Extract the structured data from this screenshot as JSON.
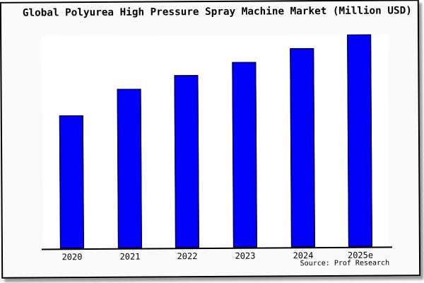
{
  "chart_data": {
    "type": "bar",
    "title": "Global Polyurea High Pressure Spray Machine Market (Million USD)",
    "categories": [
      "2020",
      "2021",
      "2022",
      "2023",
      "2024",
      "2025e"
    ],
    "values": [
      62.5,
      75.0,
      81.3,
      87.3,
      93.6,
      100
    ],
    "values_unit": "percent of tallest bar (no y-axis scale is shown in the image)",
    "xlabel": "",
    "ylabel": "",
    "ylim": [
      0,
      100
    ],
    "gridlines": false,
    "legend": false,
    "y_axis_labels_visible": false,
    "bar_color": "#0000fa",
    "bar_border_color": "#000000",
    "axis_color": "#000000",
    "plot_background": "#ffffff",
    "frame_background": "#fafafa",
    "source_note": "Source: Prof Research"
  }
}
